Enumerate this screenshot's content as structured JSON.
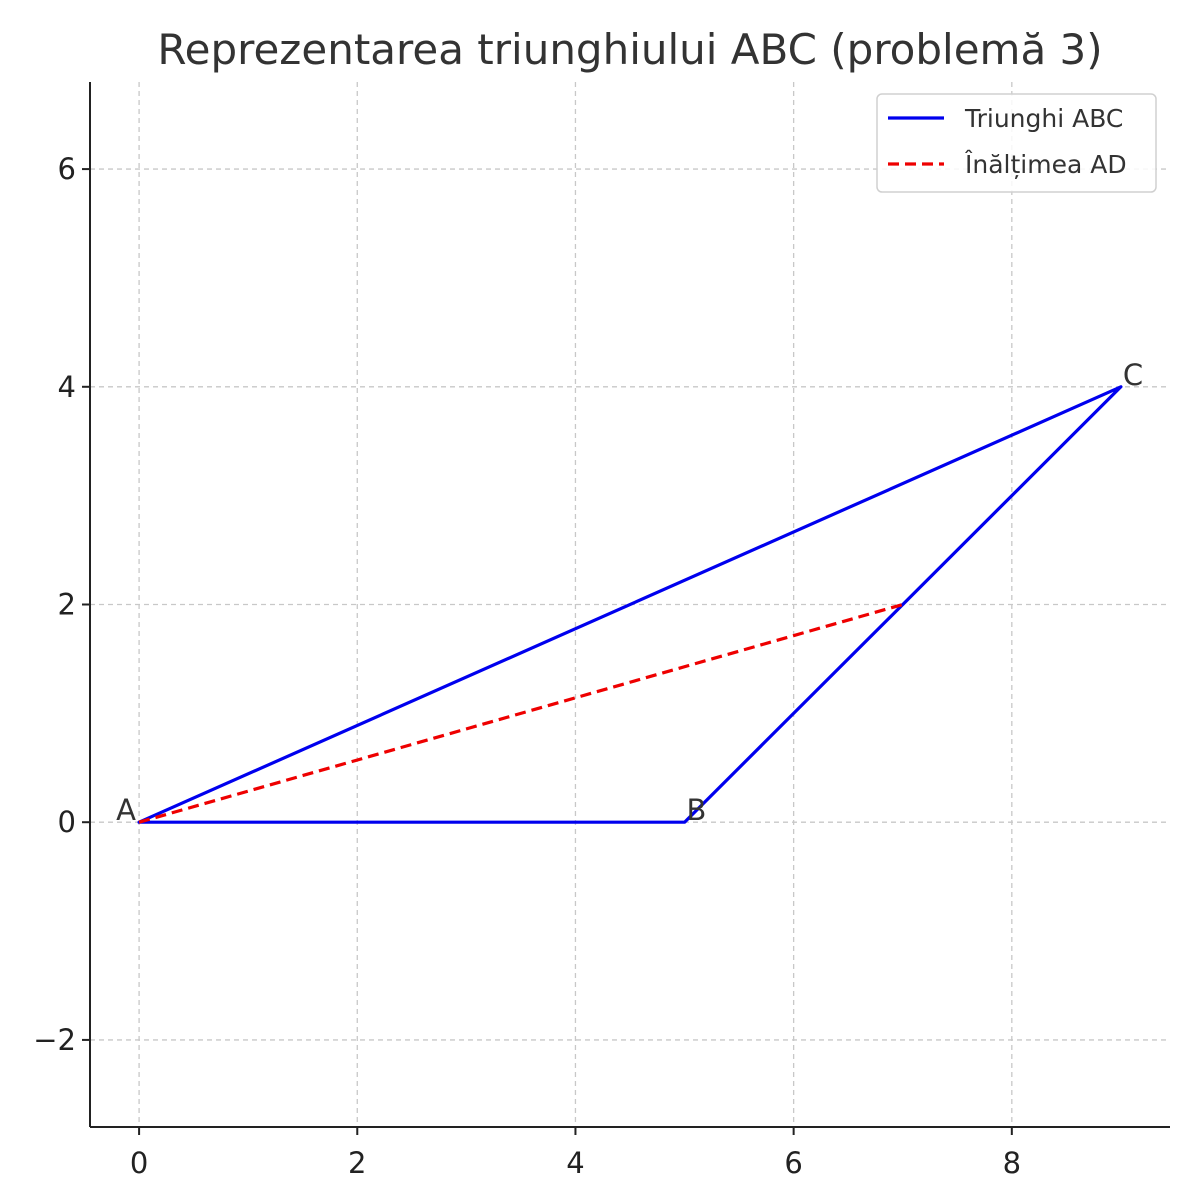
{
  "chart_data": {
    "type": "line",
    "title": "Reprezentarea triunghiului ABC (problemă 3)",
    "xlabel": "",
    "ylabel": "",
    "xlim": [
      -0.45,
      9.45
    ],
    "ylim": [
      -2.8,
      6.8
    ],
    "xticks": [
      0,
      2,
      4,
      6,
      8
    ],
    "yticks": [
      -2,
      0,
      2,
      4,
      6
    ],
    "xtick_labels": [
      "0",
      "2",
      "4",
      "6",
      "8"
    ],
    "ytick_labels": [
      "−2",
      "0",
      "2",
      "4",
      "6"
    ],
    "grid": true,
    "legend_position": "top-right",
    "series": [
      {
        "name": "Triunghi ABC",
        "color": "#0000ee",
        "style": "solid",
        "x": [
          0,
          5,
          9,
          0
        ],
        "y": [
          0,
          0,
          4,
          0
        ]
      },
      {
        "name": "Înălțimea AD",
        "color": "#ee0000",
        "style": "dashed",
        "x": [
          0,
          7
        ],
        "y": [
          0,
          2
        ]
      }
    ],
    "point_labels": [
      {
        "text": "A",
        "x": 0,
        "y": 0
      },
      {
        "text": "B",
        "x": 5,
        "y": 0
      },
      {
        "text": "C",
        "x": 9,
        "y": 4
      }
    ]
  }
}
